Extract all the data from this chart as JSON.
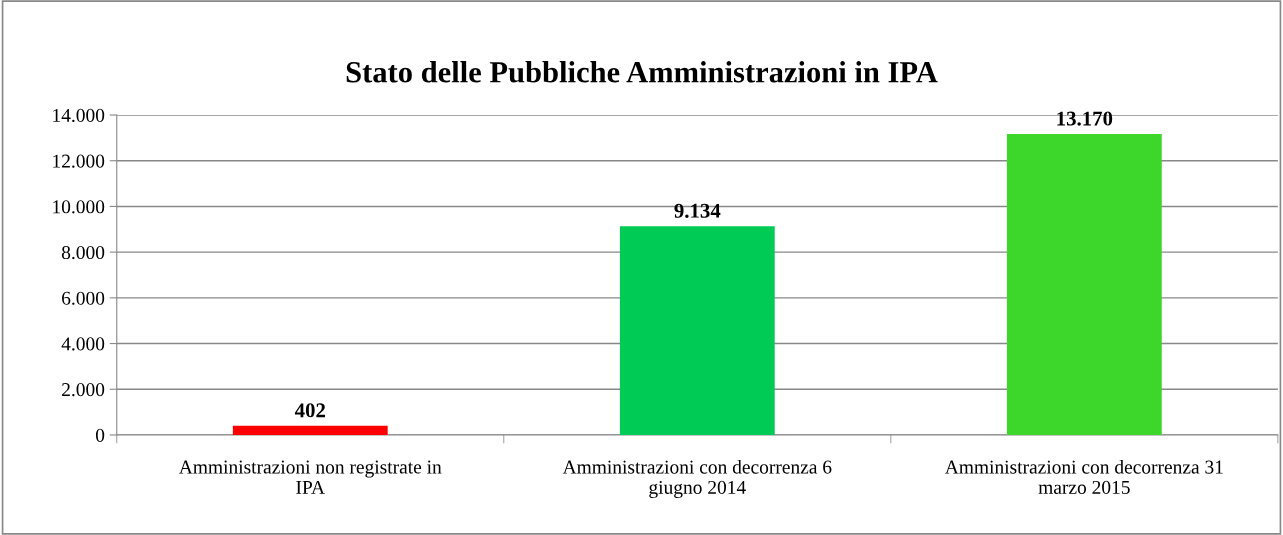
{
  "chart_data": {
    "type": "bar",
    "title": "Stato delle Pubbliche Amministrazioni in IPA",
    "categories": [
      "Amministrazioni non registrate in\nIPA",
      "Amministrazioni con decorrenza 6\ngiugno 2014",
      "Amministrazioni con decorrenza 31\nmarzo 2015"
    ],
    "values": [
      402,
      9134,
      13170
    ],
    "colors": [
      "#ff0000",
      "#00cc55",
      "#3dd62a"
    ],
    "value_labels": [
      "402",
      "9.134",
      "13.170"
    ],
    "ylim": [
      0,
      14000
    ],
    "yticks": [
      0,
      {
        "value": 2000,
        "label": "2.000"
      },
      {
        "value": 4000,
        "label": "4.000"
      },
      {
        "value": 6000,
        "label": "6.000"
      },
      {
        "value": 8000,
        "label": "8.000"
      },
      {
        "value": 10000,
        "label": "10.000"
      },
      {
        "value": 12000,
        "label": "12.000"
      },
      {
        "value": 14000,
        "label": "14.000"
      }
    ],
    "grid": "y",
    "legend": false
  }
}
